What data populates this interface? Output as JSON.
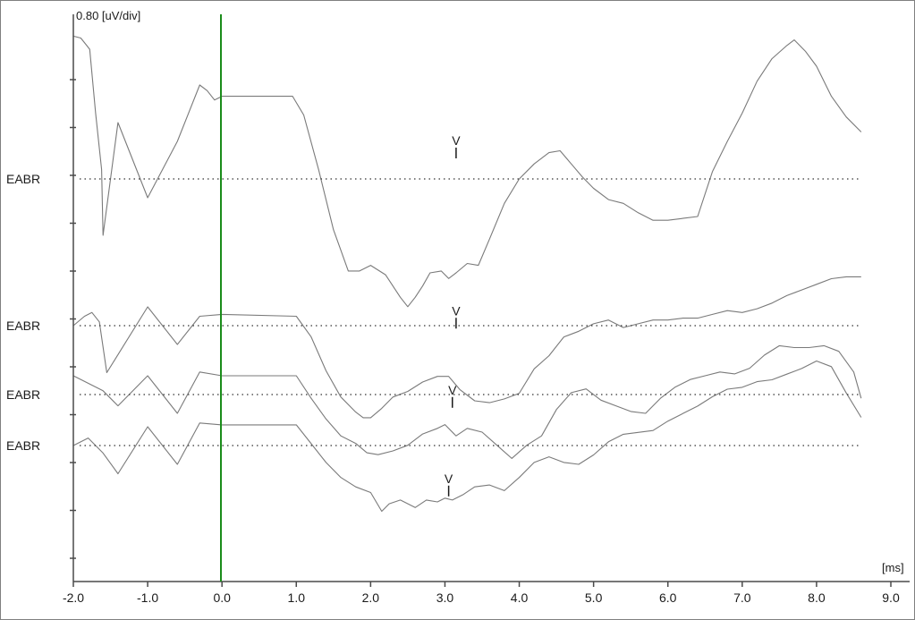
{
  "chart_data": {
    "type": "line",
    "scale_label": "0.80 [uV/div]",
    "x_unit_label": "[ms]",
    "xlim": [
      -2.0,
      9.0
    ],
    "x_ticks": [
      "-2.0",
      "-1.0",
      "0.0",
      "1.0",
      "2.0",
      "3.0",
      "4.0",
      "5.0",
      "6.0",
      "7.0",
      "8.0",
      "9.0"
    ],
    "x_tick_values": [
      -2,
      -1,
      0,
      1,
      2,
      3,
      4,
      5,
      6,
      7,
      8,
      9
    ],
    "y_scale_uV_per_div": 0.8,
    "stimulus_marker_ms": 0.0,
    "stimulus_marker_color": "#1a8c1a",
    "trace_color": "#7a7a7a",
    "grid": false,
    "series": [
      {
        "row_label": "EABR",
        "baseline_uV": 0,
        "wave_v_marker": {
          "label": "V",
          "x_ms": 3.15,
          "y_uV": 1.0
        },
        "x": [
          -2.0,
          -1.9,
          -1.82,
          -1.78,
          -1.7,
          -1.62,
          -1.6,
          -1.4,
          -1.0,
          -0.6,
          -0.3,
          -0.2,
          -0.1,
          0.0,
          0.95,
          1.1,
          1.3,
          1.5,
          1.7,
          1.85,
          2.0,
          2.2,
          2.4,
          2.5,
          2.6,
          2.7,
          2.8,
          2.95,
          3.05,
          3.15,
          3.3,
          3.45,
          3.6,
          3.8,
          4.0,
          4.2,
          4.4,
          4.55,
          4.7,
          4.85,
          5.0,
          5.2,
          5.4,
          5.6,
          5.8,
          6.0,
          6.2,
          6.4,
          6.6,
          6.8,
          7.0,
          7.2,
          7.4,
          7.6,
          7.7,
          7.85,
          8.0,
          8.2,
          8.4,
          8.6
        ],
        "values": [
          7.6,
          7.5,
          7.1,
          6.9,
          3.5,
          0.5,
          -3,
          3,
          -1,
          2,
          5.0,
          4.7,
          4.2,
          4.4,
          4.4,
          3.4,
          0.5,
          -2.7,
          -4.9,
          -4.9,
          -4.6,
          -5.1,
          -6.3,
          -6.8,
          -6.3,
          -5.7,
          -5.0,
          -4.9,
          -5.3,
          -5.0,
          -4.5,
          -4.6,
          -3.2,
          -1.3,
          0.0,
          0.8,
          1.4,
          1.5,
          0.8,
          0.1,
          -0.5,
          -1.1,
          -1.3,
          -1.8,
          -2.2,
          -2.2,
          -2.1,
          -2.0,
          0.4,
          2.0,
          3.5,
          5.2,
          6.4,
          7.1,
          7.4,
          6.8,
          6.0,
          4.4,
          3.3,
          2.5
        ]
      },
      {
        "row_label": "EABR",
        "baseline_uV": 0,
        "wave_v_marker": {
          "label": "V",
          "x_ms": 3.15,
          "y_uV": -0.25
        },
        "x": [
          -2.0,
          -1.85,
          -1.75,
          -1.65,
          -1.55,
          -1.0,
          -0.6,
          -0.3,
          0.0,
          1.0,
          1.2,
          1.4,
          1.6,
          1.8,
          1.9,
          2.0,
          2.15,
          2.3,
          2.5,
          2.7,
          2.9,
          3.05,
          3.2,
          3.4,
          3.6,
          3.8,
          4.0,
          4.2,
          4.4,
          4.6,
          4.8,
          5.0,
          5.2,
          5.4,
          5.6,
          5.8,
          6.0,
          6.2,
          6.4,
          6.6,
          6.8,
          7.0,
          7.2,
          7.4,
          7.6,
          7.8,
          8.0,
          8.2,
          8.4,
          8.6
        ],
        "values": [
          0.0,
          0.5,
          0.7,
          0.2,
          -2.5,
          1,
          -1,
          0.5,
          0.6,
          0.5,
          -0.6,
          -2.4,
          -3.8,
          -4.6,
          -4.9,
          -4.9,
          -4.4,
          -3.8,
          -3.5,
          -3.0,
          -2.7,
          -2.7,
          -3.4,
          -4.0,
          -4.1,
          -3.9,
          -3.6,
          -2.3,
          -1.6,
          -0.6,
          -0.3,
          0.1,
          0.3,
          -0.1,
          0.1,
          0.3,
          0.3,
          0.4,
          0.4,
          0.6,
          0.8,
          0.7,
          0.9,
          1.2,
          1.6,
          1.9,
          2.2,
          2.5,
          2.6,
          2.6
        ]
      },
      {
        "row_label": "EABR",
        "baseline_uV": 0,
        "wave_v_marker": {
          "label": "V",
          "x_ms": 3.1,
          "y_uV": -0.8
        },
        "x": [
          -2.0,
          -1.8,
          -1.6,
          -1.4,
          -1.0,
          -0.6,
          -0.3,
          0.0,
          1.0,
          1.2,
          1.4,
          1.6,
          1.8,
          1.95,
          2.1,
          2.3,
          2.5,
          2.7,
          2.9,
          3.0,
          3.15,
          3.3,
          3.5,
          3.7,
          3.9,
          4.1,
          4.3,
          4.5,
          4.7,
          4.9,
          5.1,
          5.3,
          5.5,
          5.7,
          5.9,
          6.1,
          6.3,
          6.5,
          6.7,
          6.9,
          7.1,
          7.3,
          7.5,
          7.7,
          7.9,
          8.1,
          8.3,
          8.5,
          8.6
        ],
        "values": [
          1.0,
          0.6,
          0.2,
          -0.6,
          1,
          -1,
          1.2,
          1.0,
          1.0,
          -0.2,
          -1.3,
          -2.2,
          -2.6,
          -3.1,
          -3.2,
          -3.0,
          -2.7,
          -2.1,
          -1.8,
          -1.6,
          -2.2,
          -1.8,
          -2.0,
          -2.7,
          -3.4,
          -2.7,
          -2.2,
          -0.8,
          0.1,
          0.3,
          -0.3,
          -0.6,
          -0.9,
          -1.0,
          -0.2,
          0.4,
          0.8,
          1.0,
          1.2,
          1.1,
          1.4,
          2.1,
          2.6,
          2.5,
          2.5,
          2.6,
          2.3,
          1.2,
          -0.2
        ]
      },
      {
        "row_label": "EABR",
        "baseline_uV": 0,
        "wave_v_marker": {
          "label": "V",
          "x_ms": 3.05,
          "y_uV": -2.8
        },
        "x": [
          -2.0,
          -1.8,
          -1.6,
          -1.4,
          -1.0,
          -0.6,
          -0.3,
          0.0,
          1.0,
          1.2,
          1.4,
          1.6,
          1.8,
          2.0,
          2.15,
          2.25,
          2.4,
          2.6,
          2.75,
          2.9,
          3.0,
          3.1,
          3.25,
          3.4,
          3.6,
          3.8,
          4.0,
          4.2,
          4.4,
          4.6,
          4.8,
          5.0,
          5.2,
          5.4,
          5.6,
          5.8,
          6.0,
          6.2,
          6.4,
          6.6,
          6.8,
          7.0,
          7.2,
          7.4,
          7.6,
          7.8,
          8.0,
          8.2,
          8.4,
          8.6
        ],
        "values": [
          0.0,
          0.4,
          -0.4,
          -1.5,
          1,
          -1,
          1.2,
          1.1,
          1.1,
          0.1,
          -0.9,
          -1.7,
          -2.2,
          -2.5,
          -3.5,
          -3.1,
          -2.9,
          -3.3,
          -2.9,
          -3.0,
          -2.8,
          -2.9,
          -2.6,
          -2.2,
          -2.1,
          -2.4,
          -1.7,
          -0.9,
          -0.6,
          -0.9,
          -1.0,
          -0.5,
          0.2,
          0.6,
          0.7,
          0.8,
          1.3,
          1.7,
          2.1,
          2.6,
          3.0,
          3.1,
          3.4,
          3.5,
          3.8,
          4.1,
          4.5,
          4.2,
          2.8,
          1.5
        ]
      }
    ]
  }
}
